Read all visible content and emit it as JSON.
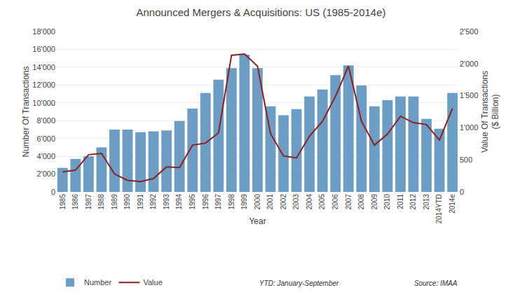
{
  "chart_data": {
    "type": "bar",
    "title": "Announced Mergers & Acquisitions: US (1985-2014e)",
    "xlabel": "Year",
    "ylabel": "Number Of Transactions",
    "y2label": "Value Of Transactions\n($ Billion)",
    "categories": [
      "1985",
      "1986",
      "1987",
      "1988",
      "1989",
      "1990",
      "1991",
      "1992",
      "1993",
      "1994",
      "1995",
      "1996",
      "1997",
      "1998",
      "1999",
      "2000",
      "2001",
      "2002",
      "2003",
      "2004",
      "2005",
      "2006",
      "2007",
      "2008",
      "2009",
      "2010",
      "2011",
      "2012",
      "2013",
      "2014YTD",
      "2014e"
    ],
    "series": [
      {
        "name": "Number",
        "type": "bar",
        "color": "#6d9dc5",
        "values": [
          2700,
          3700,
          4000,
          5000,
          7000,
          7000,
          6700,
          6800,
          6900,
          7950,
          9350,
          11100,
          12600,
          13900,
          15400,
          13900,
          9600,
          8600,
          9300,
          10700,
          11500,
          13100,
          14200,
          11950,
          9600,
          10300,
          10700,
          10700,
          8200,
          7100,
          11100
        ]
      },
      {
        "name": "Value",
        "type": "line",
        "color": "#8b2020",
        "axis": "y2",
        "values": [
          310,
          340,
          580,
          600,
          280,
          180,
          160,
          210,
          390,
          380,
          730,
          760,
          920,
          2130,
          2150,
          1960,
          910,
          560,
          530,
          870,
          1100,
          1490,
          1960,
          1100,
          730,
          900,
          1180,
          1080,
          1050,
          810,
          1300
        ]
      }
    ],
    "ylim": [
      0,
      18000
    ],
    "yticks": [
      0,
      {
        "value": 2000,
        "label": "2'000"
      },
      {
        "value": 4000,
        "label": "4'000"
      },
      {
        "value": 6000,
        "label": "6'000"
      },
      {
        "value": 8000,
        "label": "8'000"
      },
      {
        "value": 10000,
        "label": "10'000"
      },
      {
        "value": 12000,
        "label": "12'000"
      },
      {
        "value": 14000,
        "label": "14'000"
      },
      {
        "value": 16000,
        "label": "16'000"
      },
      {
        "value": 18000,
        "label": "18'000"
      }
    ],
    "y2lim": [
      0,
      2500
    ],
    "y2ticks": [
      0,
      500,
      {
        "value": 1000,
        "label": "1'000"
      },
      {
        "value": 1500,
        "label": "1'500"
      },
      {
        "value": 2000,
        "label": "2'000"
      },
      {
        "value": 2500,
        "label": "2'500"
      }
    ],
    "grid": true,
    "legend": "bottom",
    "annotations": [
      "YTD: January-September",
      "Source: IMAA"
    ]
  }
}
